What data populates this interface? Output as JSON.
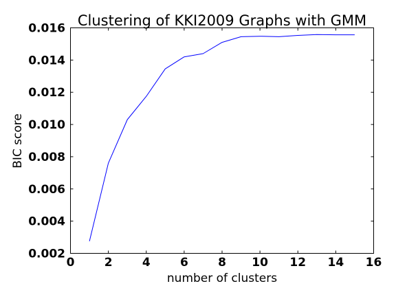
{
  "chart_data": {
    "type": "line",
    "title": "Clustering of KKI2009 Graphs with GMM",
    "xlabel": "number of clusters",
    "ylabel": "BIC score",
    "xlim": [
      0,
      16
    ],
    "ylim": [
      0.002,
      0.016
    ],
    "xticks": [
      0,
      2,
      4,
      6,
      8,
      10,
      12,
      14,
      16
    ],
    "xtick_labels": [
      "0",
      "2",
      "4",
      "6",
      "8",
      "10",
      "12",
      "14",
      "16"
    ],
    "yticks": [
      0.002,
      0.004,
      0.006,
      0.008,
      0.01,
      0.012,
      0.014,
      0.016
    ],
    "ytick_labels": [
      "0.002",
      "0.004",
      "0.006",
      "0.008",
      "0.010",
      "0.012",
      "0.014",
      "0.016"
    ],
    "grid": false,
    "legend": false,
    "series": [
      {
        "color": "#0000ff",
        "x": [
          1,
          2,
          3,
          4,
          5,
          6,
          7,
          8,
          9,
          10,
          11,
          12,
          13,
          14,
          15
        ],
        "y": [
          0.00275,
          0.0076,
          0.0103,
          0.01175,
          0.01345,
          0.0142,
          0.0144,
          0.0151,
          0.01545,
          0.01548,
          0.01545,
          0.01553,
          0.01558,
          0.01557,
          0.01557
        ]
      }
    ]
  }
}
